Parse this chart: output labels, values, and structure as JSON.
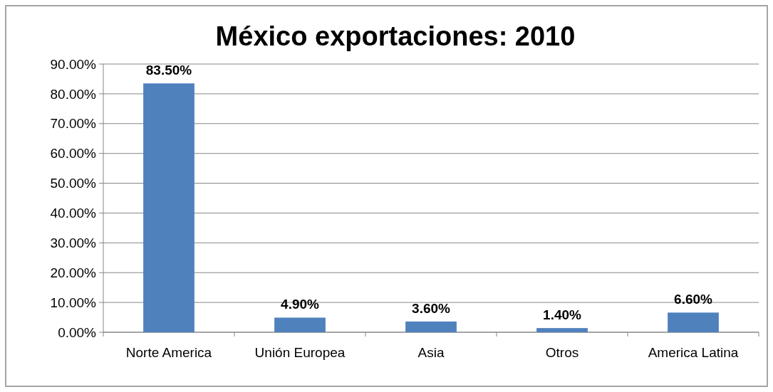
{
  "chart_data": {
    "type": "bar",
    "title": "México exportaciones: 2010",
    "categories": [
      "Norte America",
      "Unión Europea",
      "Asia",
      "Otros",
      "America Latina"
    ],
    "values": [
      83.5,
      4.9,
      3.6,
      1.4,
      6.6
    ],
    "value_labels": [
      "83.50%",
      "4.90%",
      "3.60%",
      "1.40%",
      "6.60%"
    ],
    "color": "#4f81bd",
    "ylim": [
      0,
      90
    ],
    "yticks": [
      {
        "value": 0,
        "label": "0.00%"
      },
      {
        "value": 10,
        "label": "10.00%"
      },
      {
        "value": 20,
        "label": "20.00%"
      },
      {
        "value": 30,
        "label": "30.00%"
      },
      {
        "value": 40,
        "label": "40.00%"
      },
      {
        "value": 50,
        "label": "50.00%"
      },
      {
        "value": 60,
        "label": "60.00%"
      },
      {
        "value": 70,
        "label": "70.00%"
      },
      {
        "value": 80,
        "label": "80.00%"
      },
      {
        "value": 90,
        "label": "90.00%"
      }
    ],
    "grid": true
  }
}
